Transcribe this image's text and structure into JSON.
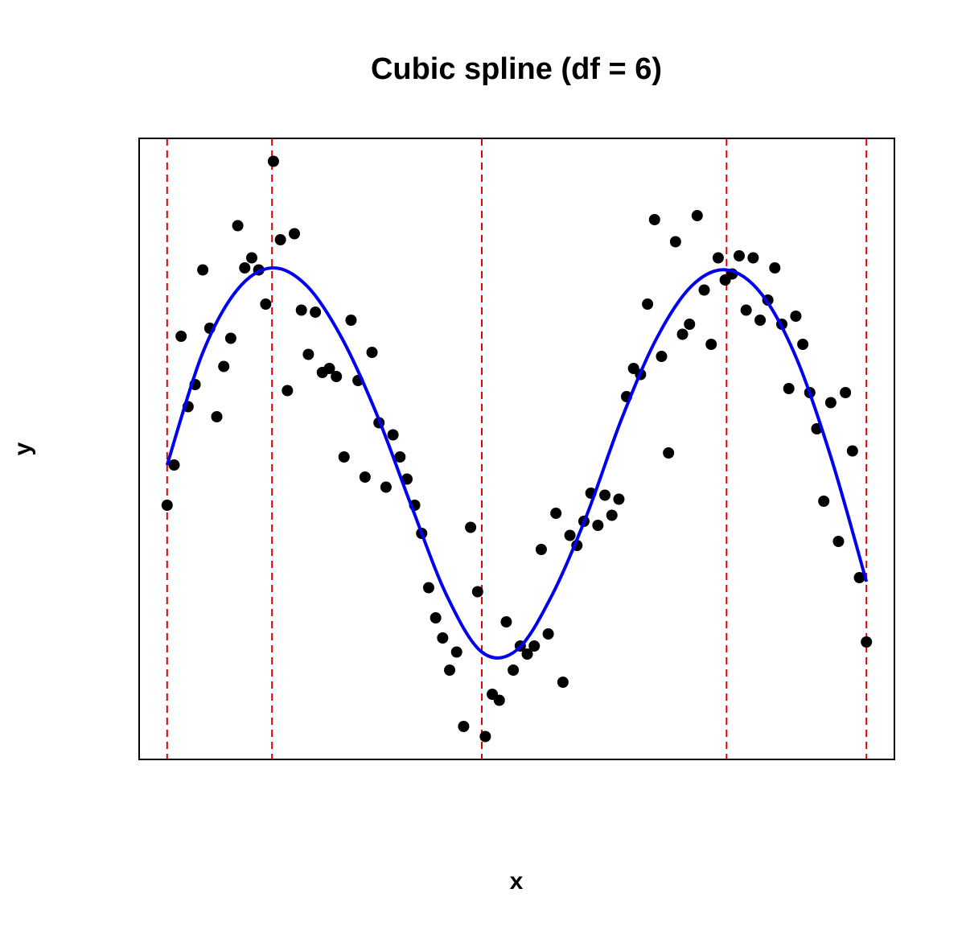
{
  "chart_data": {
    "type": "scatter",
    "title": "Cubic spline (df = 6)",
    "x_label": "x",
    "y_label": "y",
    "xlim": [
      -0.04,
      1.04
    ],
    "ylim": [
      -1.544,
      1.544
    ],
    "points": {
      "color": "#000000",
      "x": [
        0,
        0.01,
        0.02,
        0.03,
        0.04,
        0.051,
        0.061,
        0.071,
        0.081,
        0.091,
        0.101,
        0.111,
        0.121,
        0.131,
        0.141,
        0.152,
        0.162,
        0.172,
        0.182,
        0.192,
        0.202,
        0.212,
        0.222,
        0.232,
        0.242,
        0.253,
        0.263,
        0.273,
        0.283,
        0.293,
        0.303,
        0.313,
        0.323,
        0.333,
        0.343,
        0.354,
        0.364,
        0.374,
        0.384,
        0.394,
        0.404,
        0.414,
        0.424,
        0.434,
        0.444,
        0.455,
        0.465,
        0.475,
        0.485,
        0.495,
        0.505,
        0.515,
        0.525,
        0.535,
        0.545,
        0.556,
        0.566,
        0.576,
        0.586,
        0.596,
        0.606,
        0.616,
        0.626,
        0.636,
        0.646,
        0.657,
        0.667,
        0.677,
        0.687,
        0.697,
        0.707,
        0.717,
        0.727,
        0.737,
        0.747,
        0.758,
        0.768,
        0.778,
        0.788,
        0.798,
        0.808,
        0.818,
        0.828,
        0.838,
        0.848,
        0.859,
        0.869,
        0.879,
        0.889,
        0.899,
        0.909,
        0.919,
        0.929,
        0.939,
        0.949,
        0.96,
        0.97,
        0.98,
        0.99,
        1.0
      ],
      "y": [
        -0.28,
        -0.08,
        0.56,
        0.21,
        0.32,
        0.89,
        0.6,
        0.16,
        0.41,
        0.55,
        1.11,
        0.9,
        0.95,
        0.89,
        0.72,
        1.43,
        1.04,
        0.29,
        1.07,
        0.69,
        0.47,
        0.68,
        0.38,
        0.4,
        0.36,
        -0.04,
        0.64,
        0.34,
        -0.14,
        0.48,
        0.13,
        -0.19,
        0.07,
        -0.04,
        -0.15,
        -0.28,
        -0.42,
        -0.69,
        -0.84,
        -0.94,
        -1.1,
        -1.01,
        -1.38,
        -0.39,
        -0.71,
        -1.43,
        -1.22,
        -1.25,
        -0.86,
        -1.1,
        -0.98,
        -1.02,
        -0.98,
        -0.5,
        -0.92,
        -0.32,
        -1.16,
        -0.43,
        -0.48,
        -0.36,
        -0.22,
        -0.38,
        -0.23,
        -0.33,
        -0.25,
        0.26,
        0.4,
        0.37,
        0.72,
        1.14,
        0.46,
        -0.02,
        1.03,
        0.57,
        0.62,
        1.16,
        0.79,
        0.52,
        0.95,
        0.84,
        0.87,
        0.96,
        0.69,
        0.95,
        0.64,
        0.74,
        0.9,
        0.62,
        0.3,
        0.66,
        0.52,
        0.28,
        0.1,
        -0.26,
        0.23,
        -0.46,
        0.28,
        -0.01,
        -0.64,
        -0.96
      ]
    },
    "fit": {
      "color": "#0000ee",
      "x": [
        0,
        0.05,
        0.1,
        0.15,
        0.2,
        0.25,
        0.3,
        0.35,
        0.4,
        0.45,
        0.5,
        0.55,
        0.6,
        0.65,
        0.7,
        0.75,
        0.8,
        0.85,
        0.9,
        0.95,
        1
      ],
      "y": [
        -0.08,
        0.47,
        0.79,
        0.9,
        0.81,
        0.55,
        0.17,
        -0.29,
        -0.73,
        -1.01,
        -1.0,
        -0.73,
        -0.33,
        0.15,
        0.55,
        0.81,
        0.89,
        0.77,
        0.45,
        -0.05,
        -0.66
      ]
    },
    "knots": [
      0,
      0.15,
      0.45,
      0.8,
      1
    ],
    "knot_color": "#dd0000"
  }
}
